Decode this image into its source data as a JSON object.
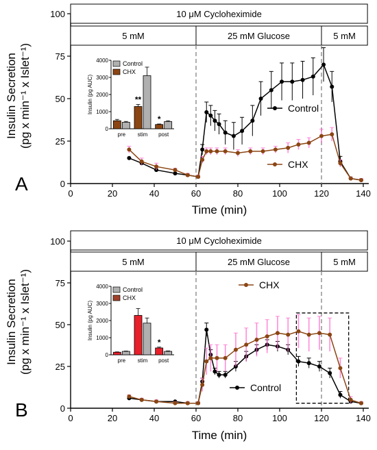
{
  "colors": {
    "control": "#000000",
    "chx": "#8b4513",
    "chx_error": "#ff66cc",
    "inset_control": "#b0b0b0",
    "inset_chx": "#e8202a",
    "inset_chx_b": "#a0402a",
    "guide": "#999999"
  },
  "chart_data": [
    {
      "panel": "A",
      "type": "line",
      "xlabel": "Time (min)",
      "ylabel_line1": "Insulin Secretion",
      "ylabel_line2": "(pg x min⁻¹ x Islet⁻¹)",
      "xlim": [
        0,
        140
      ],
      "ylim": [
        0,
        100
      ],
      "xticks": [
        0,
        20,
        40,
        60,
        80,
        100,
        120,
        140
      ],
      "yticks": [
        0,
        25,
        50,
        75,
        100
      ],
      "grid": false,
      "treatment_band": "10 μM Cycloheximide",
      "glucose_bands": [
        {
          "label": "5 mM",
          "x0": 0,
          "x1": 60
        },
        {
          "label": "25 mM Glucose",
          "x0": 60,
          "x1": 120
        },
        {
          "label": "5 mM",
          "x0": 120,
          "x1": 142
        }
      ],
      "guides": [
        60,
        120
      ],
      "series": [
        {
          "name": "Control",
          "x": [
            28,
            34,
            41,
            50,
            56,
            61,
            63,
            65,
            67,
            69,
            71,
            74,
            78,
            82,
            87,
            91,
            96,
            101,
            106,
            111,
            116,
            121,
            125,
            129,
            134,
            139
          ],
          "y": [
            15,
            12,
            8,
            6,
            5,
            4,
            20,
            42,
            40,
            37,
            35,
            30,
            28,
            31,
            37,
            50,
            55,
            60,
            60,
            61,
            63,
            70,
            57,
            13,
            3,
            2
          ],
          "err": [
            0,
            0,
            0,
            0,
            0,
            0,
            3,
            6,
            6,
            6,
            6,
            7,
            8,
            8,
            9,
            10,
            11,
            11,
            11,
            11,
            11,
            10,
            9,
            3,
            0,
            0
          ]
        },
        {
          "name": "CHX",
          "x": [
            28,
            34,
            41,
            50,
            56,
            61,
            63,
            65,
            67,
            70,
            74,
            80,
            86,
            92,
            98,
            104,
            109,
            114,
            120,
            125,
            129,
            134,
            139
          ],
          "y": [
            20,
            13,
            10,
            8,
            5,
            4,
            14,
            19,
            19,
            19,
            19,
            18,
            19,
            19,
            20,
            21,
            23,
            24,
            28,
            29,
            12,
            3,
            2
          ],
          "err": [
            2,
            2,
            2,
            1,
            1,
            1,
            2,
            2,
            2,
            2,
            2,
            2,
            2,
            2,
            2,
            3,
            3,
            3,
            4,
            4,
            2,
            1,
            1
          ]
        }
      ],
      "inset": {
        "ylabel": "Insulin (pg AUC)",
        "ylim": [
          0,
          4000
        ],
        "yticks": [
          0,
          1000,
          2000,
          3000,
          4000
        ],
        "categories": [
          "pre",
          "stim",
          "post"
        ],
        "series": [
          {
            "name": "CHX",
            "values": [
              470,
              1300,
              250
            ],
            "err": [
              80,
              120,
              30
            ]
          },
          {
            "name": "Control",
            "values": [
              380,
              3100,
              420
            ],
            "err": [
              50,
              500,
              50
            ]
          }
        ],
        "stars": [
          "",
          "**",
          "*"
        ],
        "legend_order": [
          "Control",
          "CHX"
        ]
      }
    },
    {
      "panel": "B",
      "type": "line",
      "xlabel": "Time (min)",
      "ylabel_line1": "Insulin Secretion",
      "ylabel_line2": "(pg x min⁻¹ x Islet⁻¹)",
      "xlim": [
        0,
        140
      ],
      "ylim": [
        0,
        100
      ],
      "xticks": [
        0,
        20,
        40,
        60,
        80,
        100,
        120,
        140
      ],
      "yticks": [
        0,
        25,
        50,
        75,
        100
      ],
      "grid": false,
      "treatment_band": "10 μM Cycloheximide",
      "glucose_bands": [
        {
          "label": "5 mM",
          "x0": 0,
          "x1": 60
        },
        {
          "label": "25 mM Glucose",
          "x0": 60,
          "x1": 120
        },
        {
          "label": "5 mM",
          "x0": 120,
          "x1": 142
        }
      ],
      "guides": [
        60,
        120
      ],
      "dashed_box": [
        108,
        133
      ],
      "series": [
        {
          "name": "Control",
          "x": [
            28,
            34,
            41,
            50,
            56,
            61,
            63,
            65,
            67,
            69,
            71,
            74,
            79,
            84,
            89,
            94,
            99,
            104,
            109,
            114,
            119,
            124,
            129,
            134,
            139
          ],
          "y": [
            6,
            5,
            4,
            4,
            3,
            3,
            16,
            47,
            32,
            22,
            20,
            20,
            25,
            31,
            35,
            38,
            37,
            35,
            28,
            27,
            25,
            21,
            8,
            4,
            3
          ],
          "err": [
            0,
            0,
            0,
            0,
            0,
            0,
            2,
            4,
            3,
            2,
            2,
            2,
            3,
            3,
            3,
            3,
            3,
            3,
            3,
            3,
            3,
            3,
            2,
            0,
            0
          ]
        },
        {
          "name": "CHX",
          "x": [
            28,
            34,
            41,
            50,
            56,
            61,
            63,
            65,
            67,
            70,
            74,
            79,
            84,
            89,
            94,
            99,
            104,
            109,
            114,
            119,
            124,
            129,
            134,
            139
          ],
          "y": [
            7,
            5,
            4,
            3,
            3,
            3,
            14,
            28,
            30,
            30,
            30,
            35,
            38,
            41,
            43,
            45,
            44,
            46,
            44,
            45,
            44,
            24,
            5,
            3
          ],
          "err": [
            1,
            1,
            1,
            1,
            1,
            1,
            4,
            8,
            8,
            8,
            8,
            10,
            10,
            10,
            10,
            10,
            10,
            10,
            10,
            10,
            10,
            6,
            2,
            1
          ]
        }
      ],
      "inset": {
        "ylabel": "Insulin (pg AUC)",
        "ylim": [
          0,
          4000
        ],
        "yticks": [
          0,
          1000,
          2000,
          3000,
          4000
        ],
        "categories": [
          "pre",
          "stim",
          "post"
        ],
        "series": [
          {
            "name": "CHX",
            "values": [
              150,
              2300,
              400
            ],
            "err": [
              20,
              400,
              50
            ]
          },
          {
            "name": "Control",
            "values": [
              200,
              1850,
              200
            ],
            "err": [
              20,
              300,
              30
            ]
          }
        ],
        "stars": [
          "",
          "",
          "*"
        ],
        "legend_order": [
          "Control",
          "CHX"
        ]
      }
    }
  ]
}
